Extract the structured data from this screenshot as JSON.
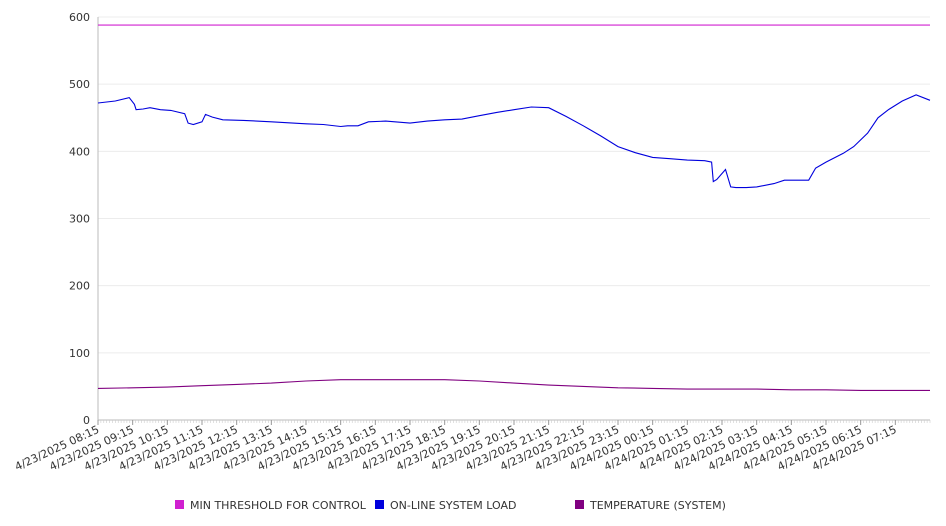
{
  "chart_data": {
    "type": "line",
    "title": "",
    "xlabel": "",
    "ylabel": "",
    "ylim": [
      0,
      600
    ],
    "yticks": [
      0,
      100,
      200,
      300,
      400,
      500,
      600
    ],
    "x_tick_labels": [
      "4/23/2025 08:15",
      "4/23/2025 09:15",
      "4/23/2025 10:15",
      "4/23/2025 11:15",
      "4/23/2025 12:15",
      "4/23/2025 13:15",
      "4/23/2025 14:15",
      "4/23/2025 15:15",
      "4/23/2025 16:15",
      "4/23/2025 17:15",
      "4/23/2025 18:15",
      "4/23/2025 19:15",
      "4/23/2025 20:15",
      "4/23/2025 21:15",
      "4/23/2025 22:15",
      "4/23/2025 23:15",
      "4/24/2025 00:15",
      "4/24/2025 01:15",
      "4/24/2025 02:15",
      "4/24/2025 03:15",
      "4/24/2025 04:15",
      "4/24/2025 05:15",
      "4/24/2025 06:15",
      "4/24/2025 07:15"
    ],
    "x_hours_span": 24.0,
    "grid": true,
    "legend_placement": "bottom",
    "series": [
      {
        "name": "MIN THRESHOLD FOR CONTROL",
        "color": "#d020d0",
        "x": [
          0,
          24.0
        ],
        "values": [
          588,
          588
        ]
      },
      {
        "name": "ON-LINE SYSTEM LOAD",
        "color": "#0000dd",
        "x": [
          0,
          0.5,
          0.9,
          1.05,
          1.1,
          1.3,
          1.5,
          1.8,
          2.1,
          2.5,
          2.6,
          2.75,
          3.0,
          3.1,
          3.3,
          3.6,
          4.2,
          5.0,
          6.0,
          6.5,
          7.0,
          7.2,
          7.5,
          7.8,
          8.3,
          9.0,
          9.5,
          10.0,
          10.5,
          11.0,
          11.5,
          12.0,
          12.5,
          13.0,
          13.5,
          14.0,
          14.5,
          15.0,
          15.5,
          16.0,
          16.5,
          17.0,
          17.5,
          17.7,
          17.75,
          17.85,
          18.1,
          18.25,
          18.4,
          18.7,
          19.0,
          19.5,
          19.8,
          20.5,
          20.7,
          21.0,
          21.5,
          21.8,
          22.2,
          22.5,
          22.8,
          23.2,
          23.6,
          24.0
        ],
        "values": [
          472,
          475,
          480,
          470,
          462,
          463,
          465,
          462,
          461,
          456,
          442,
          440,
          444,
          455,
          451,
          447,
          446,
          444,
          441,
          440,
          437,
          438,
          438,
          444,
          445,
          442,
          445,
          447,
          448,
          453,
          458,
          462,
          466,
          465,
          452,
          438,
          423,
          407,
          398,
          391,
          389,
          387,
          386,
          384,
          355,
          358,
          373,
          347,
          346,
          346,
          347,
          352,
          357,
          357,
          375,
          384,
          397,
          407,
          427,
          450,
          462,
          475,
          484,
          476
        ]
      },
      {
        "name": "TEMPERATURE (SYSTEM)",
        "color": "#800080",
        "x": [
          0,
          1,
          2,
          3,
          4,
          5,
          6,
          7,
          8,
          9,
          10,
          11,
          12,
          13,
          14,
          15,
          16,
          17,
          18,
          19,
          20,
          21,
          22,
          23,
          24.0
        ],
        "values": [
          47,
          48,
          49,
          51,
          53,
          55,
          58,
          60,
          60,
          60,
          60,
          58,
          55,
          52,
          50,
          48,
          47,
          46,
          46,
          46,
          45,
          45,
          44,
          44,
          44
        ]
      }
    ]
  }
}
